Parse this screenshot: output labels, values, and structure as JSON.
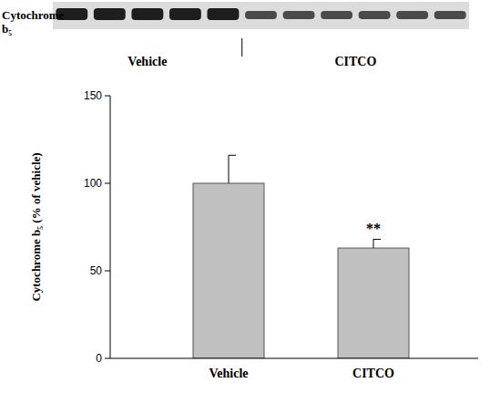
{
  "chart_data": {
    "type": "bar",
    "y_label": "Cytochrome b₅ (% of vehicle)",
    "categories": [
      "Vehicle",
      "CITCO"
    ],
    "values": [
      100,
      63
    ],
    "errors": [
      16,
      5
    ],
    "color": "#c0c0c0",
    "ylim": [
      0,
      150
    ],
    "yticks": [
      0,
      50,
      100,
      150
    ],
    "grid": false,
    "annotations": [
      {
        "text": "**",
        "x": "CITCO"
      }
    ],
    "blot": {
      "label": "Cytochrome b₅",
      "groups": [
        "Vehicle",
        "CITCO"
      ],
      "lanes": [
        5,
        6
      ]
    }
  }
}
